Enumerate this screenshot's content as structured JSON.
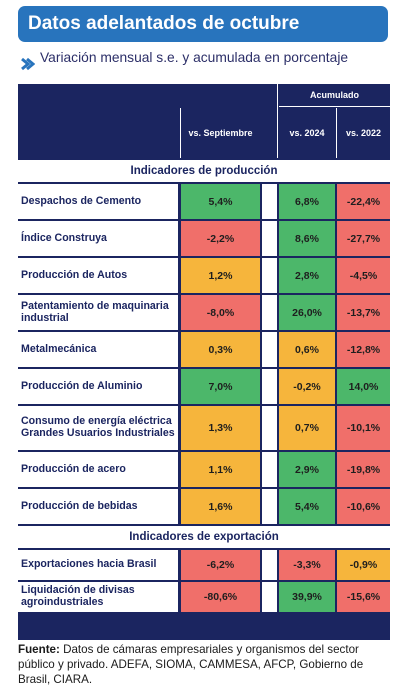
{
  "title": "Datos adelantados de octubre",
  "subtitle": "Variación mensual s.e. y acumulada en porcentaje",
  "table": {
    "group_header": "Acumulado",
    "columns": [
      "vs. Septiembre",
      "vs. 2024",
      "vs. 2022"
    ],
    "sections": [
      {
        "title": "Indicadores de producción",
        "rows": [
          {
            "label": "Despachos de Cemento",
            "values": [
              "5,4%",
              "6,8%",
              "-22,4%"
            ],
            "colors": [
              "g",
              "g",
              "r"
            ]
          },
          {
            "label": "Índice Construya",
            "values": [
              "-2,2%",
              "8,6%",
              "-27,7%"
            ],
            "colors": [
              "r",
              "g",
              "r"
            ]
          },
          {
            "label": "Producción de Autos",
            "values": [
              "1,2%",
              "2,8%",
              "-4,5%"
            ],
            "colors": [
              "y",
              "g",
              "r"
            ]
          },
          {
            "label": "Patentamiento de maquinaria industrial",
            "values": [
              "-8,0%",
              "26,0%",
              "-13,7%"
            ],
            "colors": [
              "r",
              "g",
              "r"
            ]
          },
          {
            "label": "Metalmecánica",
            "values": [
              "0,3%",
              "0,6%",
              "-12,8%"
            ],
            "colors": [
              "y",
              "y",
              "r"
            ]
          },
          {
            "label": "Producción de Aluminio",
            "values": [
              "7,0%",
              "-0,2%",
              "14,0%"
            ],
            "colors": [
              "g",
              "y",
              "g"
            ]
          },
          {
            "label": "Consumo de energía eléctrica Grandes Usuarios Industriales",
            "values": [
              "1,3%",
              "0,7%",
              "-10,1%"
            ],
            "colors": [
              "y",
              "y",
              "r"
            ]
          },
          {
            "label": "Producción de acero",
            "values": [
              "1,1%",
              "2,9%",
              "-19,8%"
            ],
            "colors": [
              "y",
              "g",
              "r"
            ]
          },
          {
            "label": "Producción de bebidas",
            "values": [
              "1,6%",
              "5,4%",
              "-10,6%"
            ],
            "colors": [
              "y",
              "g",
              "r"
            ]
          }
        ]
      },
      {
        "title": "Indicadores de exportación",
        "rows": [
          {
            "label": "Exportaciones hacia Brasil",
            "values": [
              "-6,2%",
              "-3,3%",
              "-0,9%"
            ],
            "colors": [
              "r",
              "r",
              "y"
            ]
          },
          {
            "label": "Liquidación de divisas agroindustriales",
            "values": [
              "-80,6%",
              "39,9%",
              "-15,6%"
            ],
            "colors": [
              "r",
              "g",
              "r"
            ]
          }
        ]
      }
    ]
  },
  "footer": {
    "label": "Fuente:",
    "text": "Datos de cámaras empresariales y organismos del sector público y privado. ADEFA, SIOMA, CAMMESA, AFCP, Gobierno de Brasil, CIARA."
  },
  "colors": {
    "title_bg": "#2874bd",
    "table_navy": "#1b2560",
    "green": "#4cb76a",
    "red": "#f06f6a",
    "yellow": "#f6b53c"
  },
  "icons": {
    "subtitle_marker": "chevron-right-icon"
  }
}
